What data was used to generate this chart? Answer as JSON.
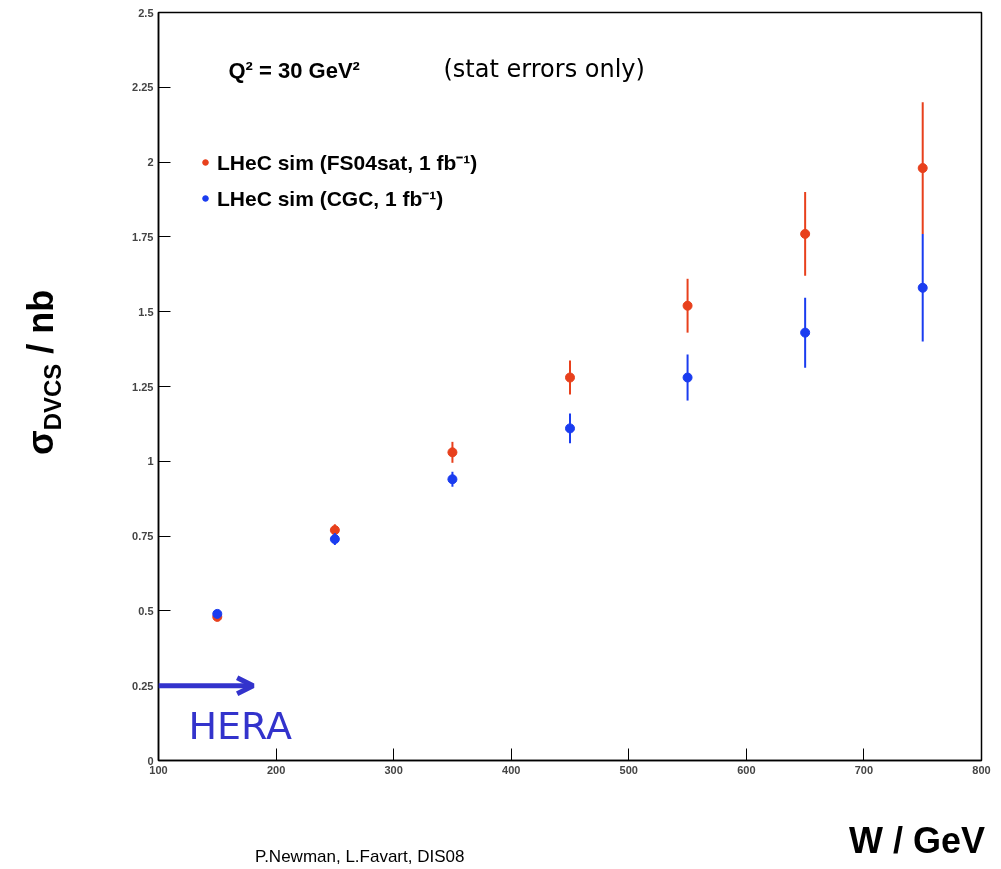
{
  "chart_data": {
    "type": "scatter",
    "xlabel": "W / GeV",
    "ylabel": "σ$_{DVCS}$ / nb",
    "x": [
      150,
      250,
      350,
      450,
      550,
      650,
      750
    ],
    "series": [
      {
        "name": "LHeC sim (FS04sat, 1 fb⁻¹)",
        "color": "#e8401c",
        "values": [
          0.48,
          0.77,
          1.03,
          1.28,
          1.52,
          1.76,
          1.98
        ],
        "errors": [
          null,
          0.02,
          0.035,
          0.057,
          0.09,
          0.14,
          0.22
        ]
      },
      {
        "name": "LHeC sim (CGC, 1 fb⁻¹)",
        "color": "#1a3cf0",
        "values": [
          0.49,
          0.74,
          0.94,
          1.11,
          1.28,
          1.43,
          1.58
        ],
        "errors": [
          null,
          0.02,
          0.025,
          0.05,
          0.077,
          0.117,
          0.18
        ]
      }
    ],
    "xlim": [
      100,
      800
    ],
    "xticks": [
      100,
      200,
      300,
      400,
      500,
      600,
      700,
      800
    ],
    "ylim": [
      0,
      2.5
    ],
    "yticks": [
      0,
      0.25,
      0.5,
      0.75,
      1,
      1.25,
      1.5,
      1.75,
      2,
      2.25,
      2.5
    ],
    "marker": "circle",
    "legend": "top left",
    "grid": false,
    "ref_lines": [
      {
        "axis": "y",
        "value": 0.25,
        "label": "HERA",
        "color": "#3333cc"
      }
    ],
    "annotations": [
      "Q² = 30 GeV²",
      "(stat errors only)",
      "P.Newman, L.Favart, DIS08"
    ]
  }
}
